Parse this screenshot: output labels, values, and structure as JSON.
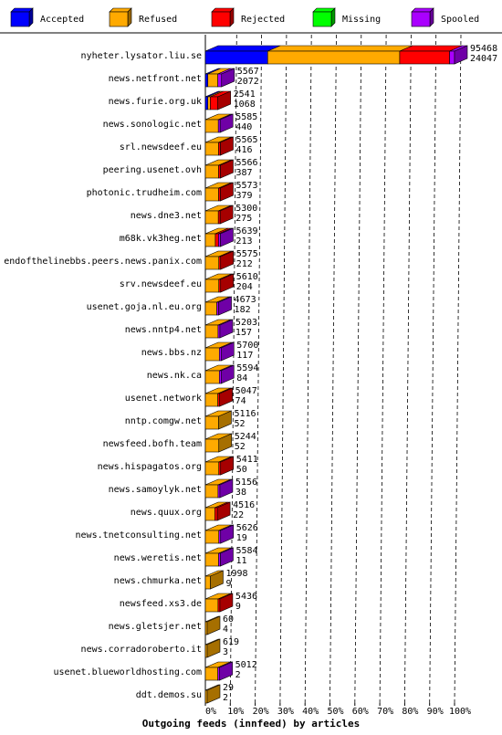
{
  "chart_data": {
    "type": "bar",
    "orientation": "horizontal",
    "stacked": true,
    "xlabel": "Outgoing feeds (innfeed) by articles",
    "x_ticks": [
      "0%",
      "10%",
      "20%",
      "30%",
      "40%",
      "50%",
      "60%",
      "70%",
      "80%",
      "90%",
      "100%"
    ],
    "xlim": [
      0,
      100
    ],
    "legend": {
      "placement": "top",
      "items": [
        {
          "name": "Accepted",
          "color": "#0000ff"
        },
        {
          "name": "Refused",
          "color": "#ffaa00"
        },
        {
          "name": "Rejected",
          "color": "#ff0000"
        },
        {
          "name": "Missing",
          "color": "#00ff00"
        },
        {
          "name": "Spooled",
          "color": "#aa00ff"
        }
      ]
    },
    "rows": [
      {
        "name": "nyheter.lysator.liu.se",
        "total": "95468",
        "second": "24047",
        "pct": {
          "accepted": 25,
          "refused": 53,
          "rejected": 20,
          "spooled": 2
        }
      },
      {
        "name": "news.netfront.net",
        "total": "5567",
        "second": "2072",
        "pct": {
          "accepted": 1,
          "refused": 4,
          "rejected": 0,
          "spooled": 1.5
        }
      },
      {
        "name": "news.furie.org.uk",
        "total": "2541",
        "second": "1068",
        "pct": {
          "accepted": 1,
          "refused": 1,
          "rejected": 3,
          "spooled": 0
        }
      },
      {
        "name": "news.sonologic.net",
        "total": "5585",
        "second": "440",
        "pct": {
          "accepted": 0,
          "refused": 5.2,
          "rejected": 0,
          "spooled": 0.6
        }
      },
      {
        "name": "srl.newsdeef.eu",
        "total": "5565",
        "second": "416",
        "pct": {
          "accepted": 0,
          "refused": 5.3,
          "rejected": 0.5,
          "spooled": 0
        }
      },
      {
        "name": "peering.usenet.ovh",
        "total": "5566",
        "second": "387",
        "pct": {
          "accepted": 0,
          "refused": 5.3,
          "rejected": 0.5,
          "spooled": 0
        }
      },
      {
        "name": "photonic.trudheim.com",
        "total": "5573",
        "second": "379",
        "pct": {
          "accepted": 0,
          "refused": 5.3,
          "rejected": 0.5,
          "spooled": 0
        }
      },
      {
        "name": "news.dne3.net",
        "total": "5300",
        "second": "275",
        "pct": {
          "accepted": 0,
          "refused": 5.2,
          "rejected": 0.4,
          "spooled": 0
        }
      },
      {
        "name": "m68k.vk3heg.net",
        "total": "5639",
        "second": "213",
        "pct": {
          "accepted": 0,
          "refused": 4.0,
          "rejected": 1.3,
          "spooled": 0.5
        }
      },
      {
        "name": "endofthelinebbs.peers.news.panix.com",
        "total": "5575",
        "second": "212",
        "pct": {
          "accepted": 0,
          "refused": 5.4,
          "rejected": 0.4,
          "spooled": 0
        }
      },
      {
        "name": "srv.newsdeef.eu",
        "total": "5610",
        "second": "204",
        "pct": {
          "accepted": 0,
          "refused": 5.4,
          "rejected": 0.4,
          "spooled": 0
        }
      },
      {
        "name": "usenet.goja.nl.eu.org",
        "total": "4673",
        "second": "182",
        "pct": {
          "accepted": 0,
          "refused": 4.6,
          "rejected": 0,
          "spooled": 0.3
        }
      },
      {
        "name": "news.nntp4.net",
        "total": "5203",
        "second": "157",
        "pct": {
          "accepted": 0,
          "refused": 5.1,
          "rejected": 0,
          "spooled": 0.3
        }
      },
      {
        "name": "news.bbs.nz",
        "total": "5700",
        "second": "117",
        "pct": {
          "accepted": 0,
          "refused": 5.6,
          "rejected": 0,
          "spooled": 0.3
        }
      },
      {
        "name": "news.nk.ca",
        "total": "5594",
        "second": "84",
        "pct": {
          "accepted": 0,
          "refused": 5.6,
          "rejected": 0,
          "spooled": 0.2
        }
      },
      {
        "name": "usenet.network",
        "total": "5047",
        "second": "74",
        "pct": {
          "accepted": 0,
          "refused": 5.0,
          "rejected": 0.3,
          "spooled": 0
        }
      },
      {
        "name": "nntp.comgw.net",
        "total": "5116",
        "second": "52",
        "pct": {
          "accepted": 0,
          "refused": 5.3,
          "rejected": 0,
          "spooled": 0
        }
      },
      {
        "name": "newsfeed.bofh.team",
        "total": "5244",
        "second": "52",
        "pct": {
          "accepted": 0,
          "refused": 5.4,
          "rejected": 0,
          "spooled": 0
        }
      },
      {
        "name": "news.hispagatos.org",
        "total": "5411",
        "second": "50",
        "pct": {
          "accepted": 0,
          "refused": 5.4,
          "rejected": 0.3,
          "spooled": 0
        }
      },
      {
        "name": "news.samoylyk.net",
        "total": "5156",
        "second": "38",
        "pct": {
          "accepted": 0,
          "refused": 5.1,
          "rejected": 0,
          "spooled": 0.2
        }
      },
      {
        "name": "news.quux.org",
        "total": "4516",
        "second": "22",
        "pct": {
          "accepted": 0,
          "refused": 3.8,
          "rejected": 1.0,
          "spooled": 0
        }
      },
      {
        "name": "news.tnetconsulting.net",
        "total": "5626",
        "second": "19",
        "pct": {
          "accepted": 0,
          "refused": 5.4,
          "rejected": 0,
          "spooled": 0.3
        }
      },
      {
        "name": "news.weretis.net",
        "total": "5584",
        "second": "11",
        "pct": {
          "accepted": 0,
          "refused": 5.3,
          "rejected": 0,
          "spooled": 0.3
        }
      },
      {
        "name": "news.chmurka.net",
        "total": "1998",
        "second": "9",
        "pct": {
          "accepted": 0,
          "refused": 2.0,
          "rejected": 0,
          "spooled": 0
        }
      },
      {
        "name": "newsfeed.xs3.de",
        "total": "5436",
        "second": "9",
        "pct": {
          "accepted": 0,
          "refused": 5.1,
          "rejected": 0.4,
          "spooled": 0
        }
      },
      {
        "name": "news.gletsjer.net",
        "total": "60",
        "second": "4",
        "pct": {
          "accepted": 0,
          "refused": 0.3,
          "rejected": 0,
          "spooled": 0
        }
      },
      {
        "name": "news.corradoroberto.it",
        "total": "619",
        "second": "3",
        "pct": {
          "accepted": 0,
          "refused": 0.6,
          "rejected": 0,
          "spooled": 0
        }
      },
      {
        "name": "usenet.blueworldhosting.com",
        "total": "5012",
        "second": "2",
        "pct": {
          "accepted": 0,
          "refused": 5.0,
          "rejected": 0,
          "spooled": 0.3
        }
      },
      {
        "name": "ddt.demos.su",
        "total": "29",
        "second": "2",
        "pct": {
          "accepted": 0,
          "refused": 0.2,
          "rejected": 0,
          "spooled": 0
        }
      }
    ]
  }
}
